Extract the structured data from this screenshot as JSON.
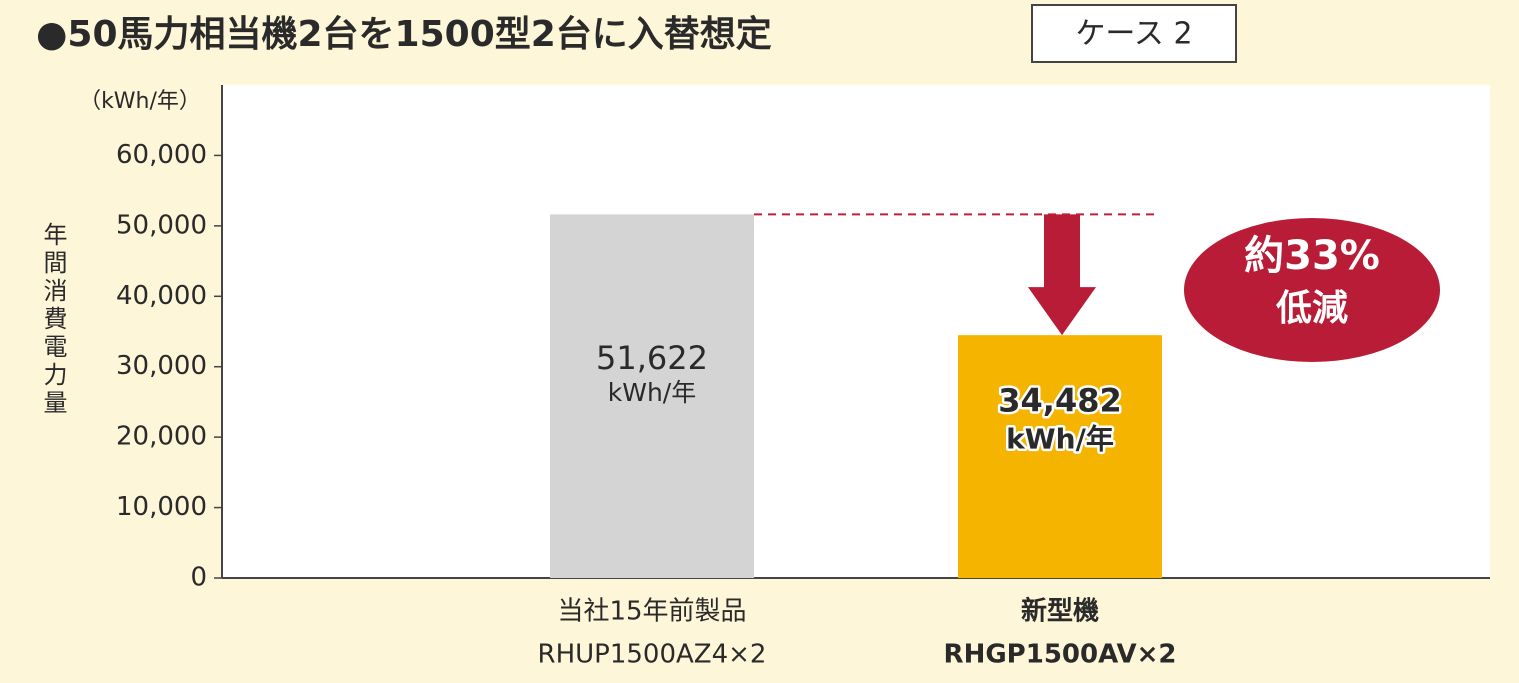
{
  "chart_data": {
    "type": "bar",
    "title": "●50馬力相当機2台を1500型2台に入替想定",
    "badge": "ケース 2",
    "unit_label": "（kWh/年）",
    "y_label": "年間消費電力量",
    "categories": [
      "当社15年前製品",
      "新型機"
    ],
    "category_models": [
      "RHUP1500AZ4×2",
      "RHGP1500AV×2"
    ],
    "values": [
      51622,
      34482
    ],
    "value_labels": [
      "51,622",
      "34,482"
    ],
    "value_unit": "kWh/年",
    "colors": [
      "#d4d4d4",
      "#f5b400"
    ],
    "ylim": [
      0,
      70000
    ],
    "yticks": [
      0,
      {
        "value": 10000,
        "label": "10,000"
      },
      {
        "value": 20000,
        "label": "20,000"
      },
      {
        "value": 30000,
        "label": "30,000"
      },
      {
        "value": 40000,
        "label": "40,000"
      },
      {
        "value": 50000,
        "label": "50,000"
      },
      {
        "value": 60000,
        "label": "60,000"
      }
    ],
    "annotation": [
      "約33%",
      "低減"
    ]
  }
}
